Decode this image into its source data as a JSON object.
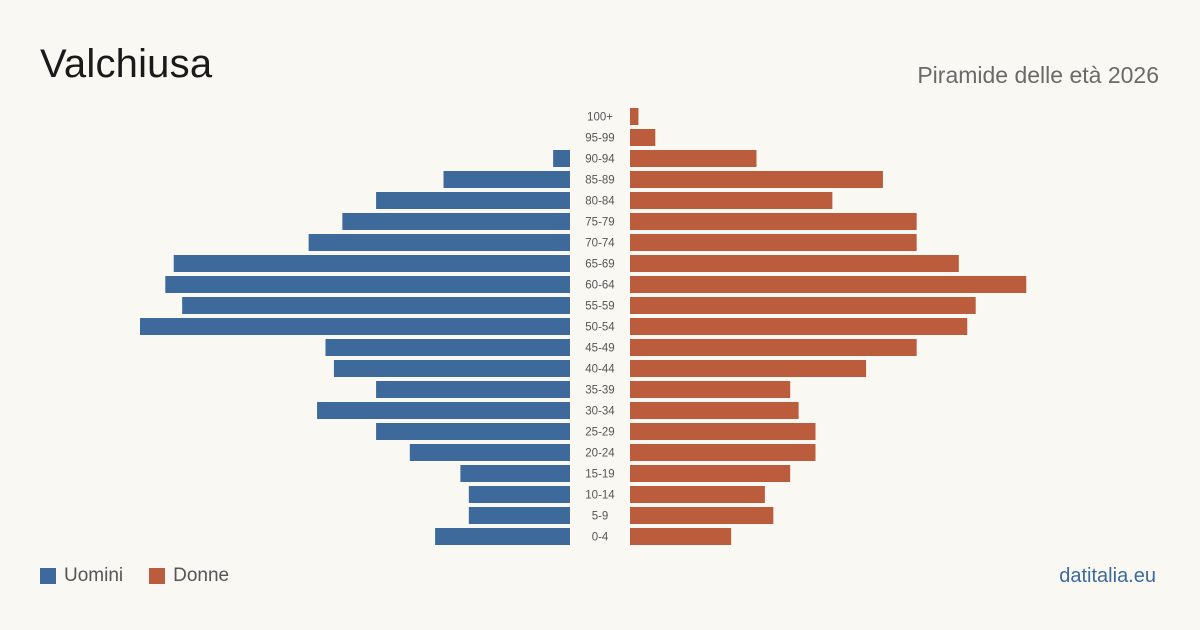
{
  "header": {
    "title": "Valchiusa",
    "subtitle": "Piramide delle età 2026"
  },
  "legend": {
    "men_label": "Uomini",
    "women_label": "Donne"
  },
  "brand": "datitalia.eu",
  "colors": {
    "men": "#3d6a9b",
    "women": "#bb5c3c",
    "background": "#faf8f3"
  },
  "chart_data": {
    "type": "bar",
    "orientation": "horizontal-pyramid",
    "categories": [
      "100+",
      "95-99",
      "90-94",
      "85-89",
      "80-84",
      "75-79",
      "70-74",
      "65-69",
      "60-64",
      "55-59",
      "50-54",
      "45-49",
      "40-44",
      "35-39",
      "30-34",
      "25-29",
      "20-24",
      "15-19",
      "10-14",
      "5-9",
      "0-4"
    ],
    "series": [
      {
        "name": "Uomini",
        "values": [
          0,
          0,
          2,
          15,
          23,
          27,
          31,
          47,
          48,
          46,
          51,
          29,
          28,
          23,
          30,
          23,
          19,
          13,
          12,
          12,
          16
        ]
      },
      {
        "name": "Donne",
        "values": [
          1,
          3,
          15,
          30,
          24,
          34,
          34,
          39,
          47,
          41,
          40,
          34,
          28,
          19,
          20,
          22,
          22,
          19,
          16,
          17,
          12
        ]
      }
    ],
    "xlim": [
      0,
      51
    ],
    "grid": false,
    "legend_position": "bottom-left"
  }
}
